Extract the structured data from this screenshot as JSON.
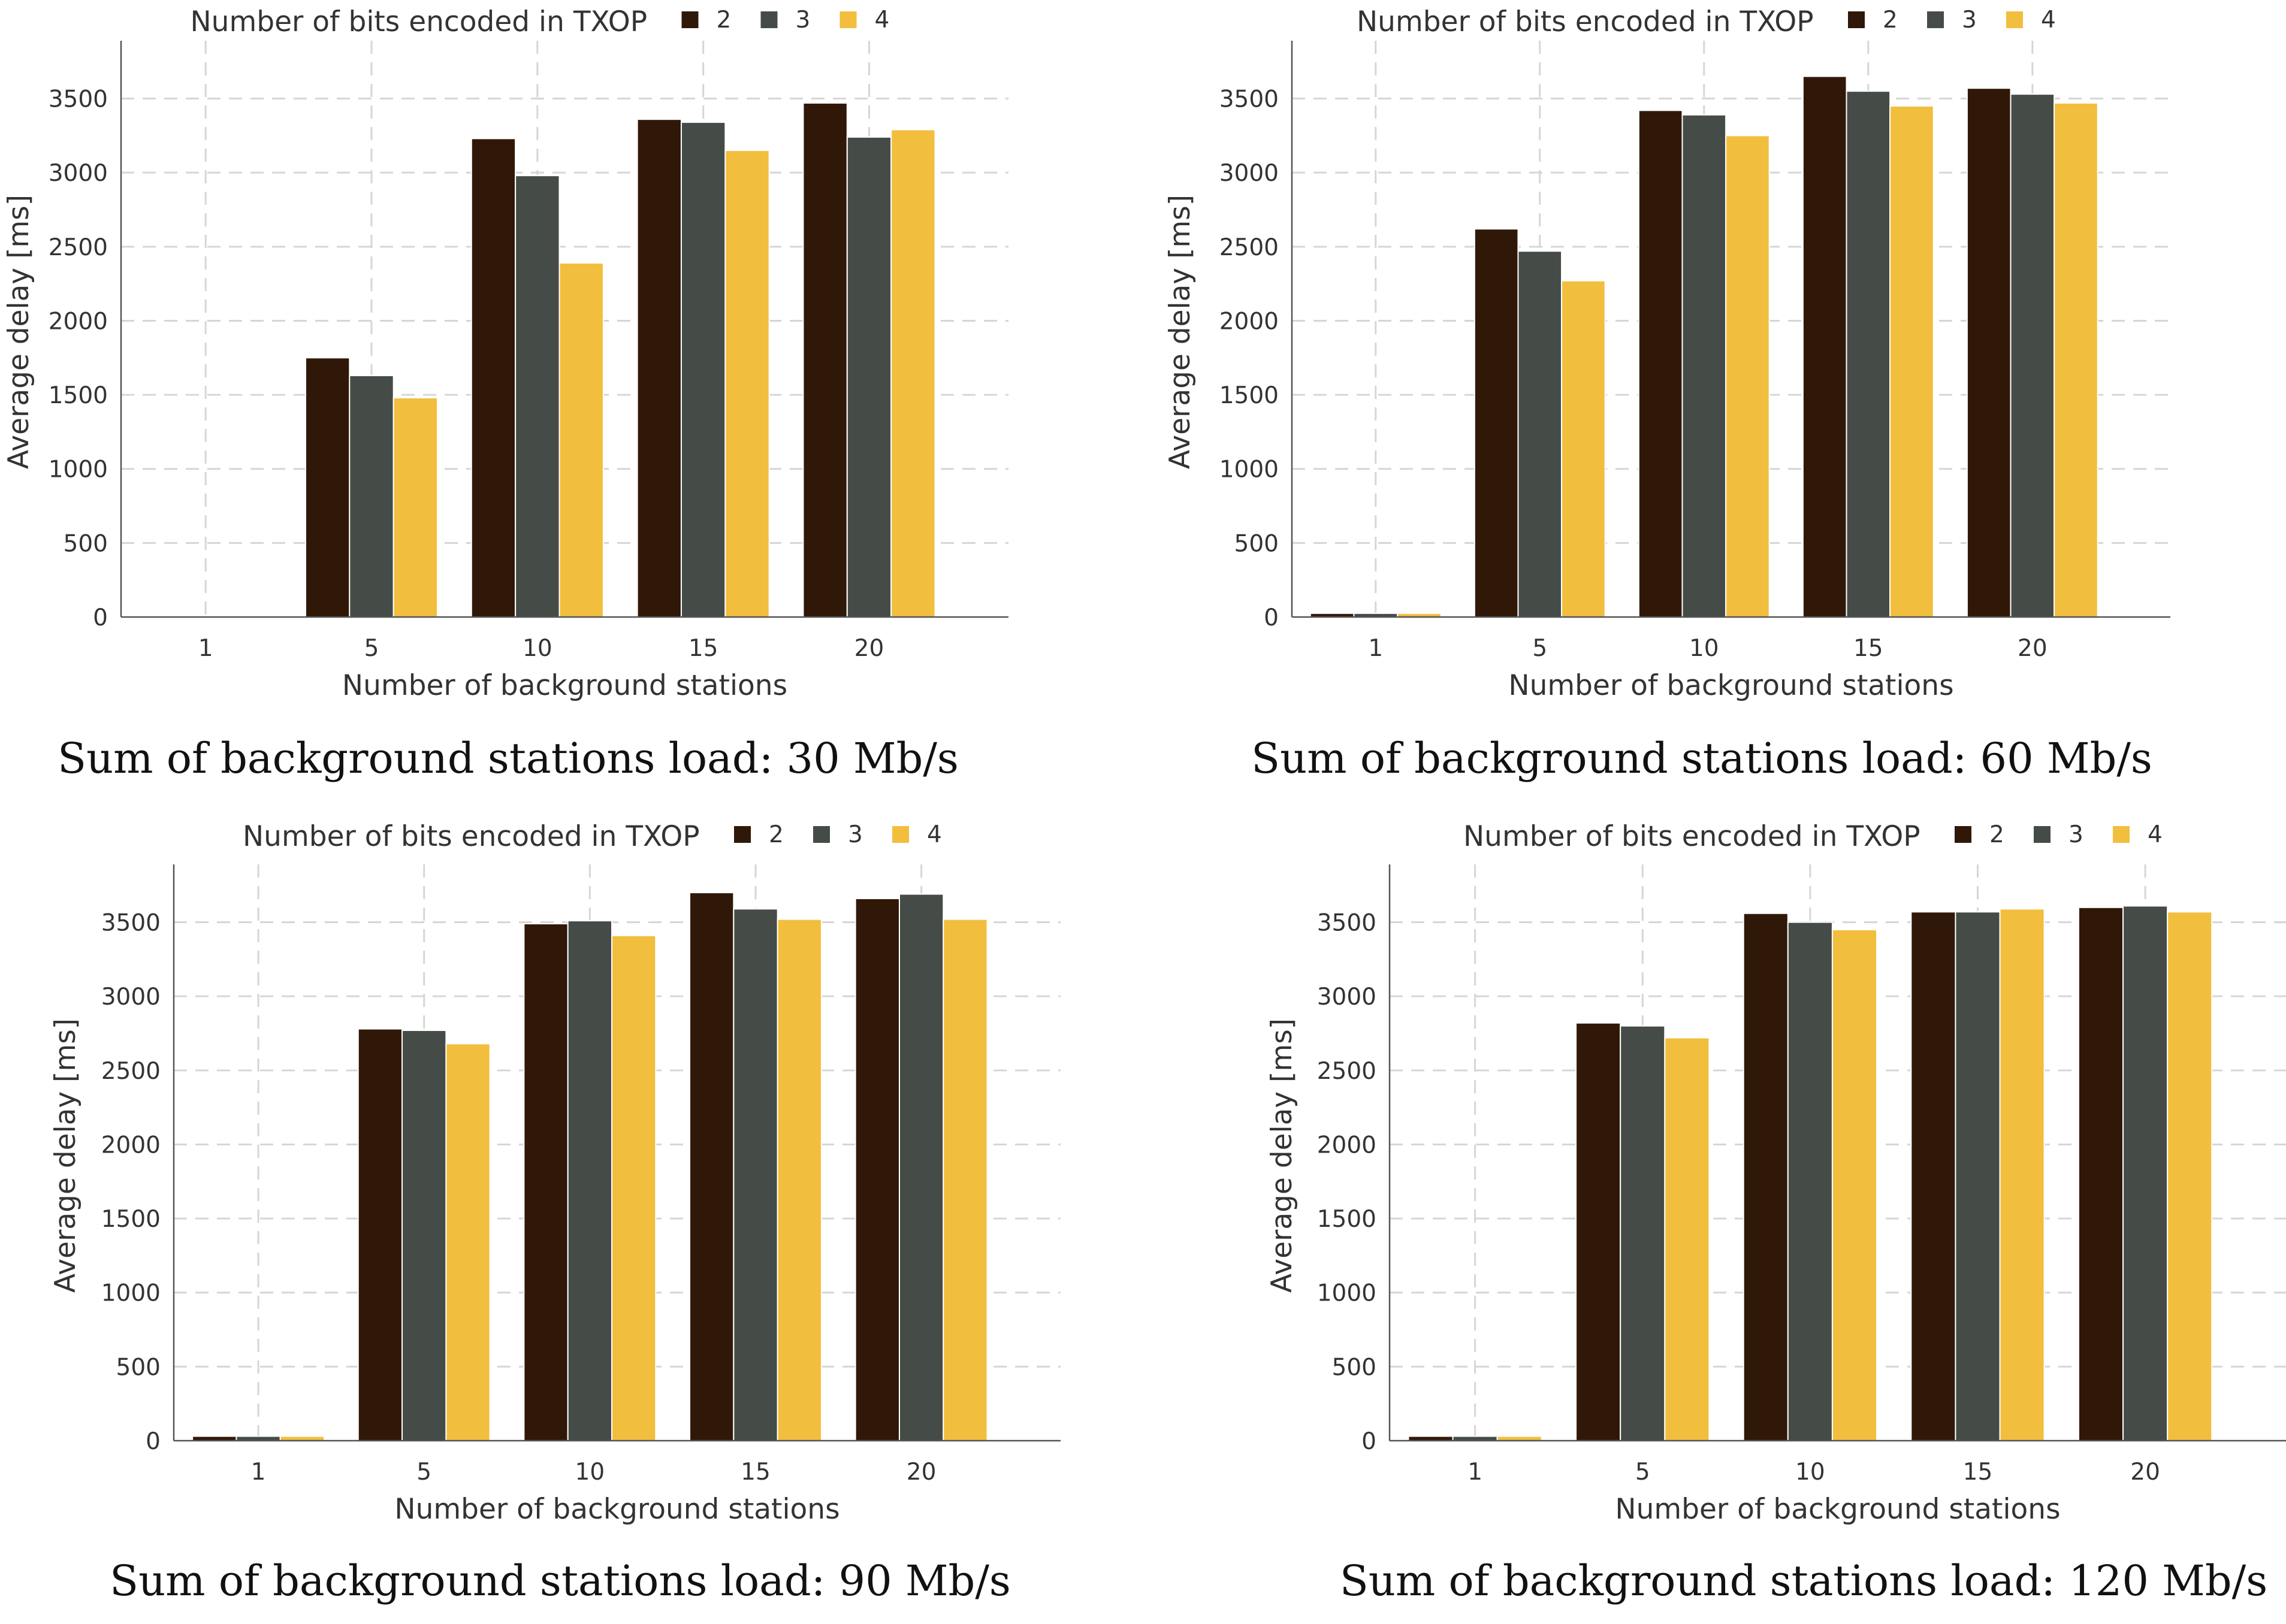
{
  "chart_data": [
    {
      "type": "bar",
      "caption": "Sum of background stations load: 30 Mb/s",
      "xlabel": "Number of background stations",
      "ylabel": "Average delay [ms]",
      "legend_title": "Number of bits encoded in TXOP",
      "legend_position": "top",
      "categories": [
        "1",
        "5",
        "10",
        "15",
        "20"
      ],
      "ylim": [
        0,
        3850
      ],
      "yticks": [
        0,
        500,
        1000,
        1500,
        2000,
        2500,
        3000,
        3500
      ],
      "grid": true,
      "series": [
        {
          "name": "2",
          "color": "#301808",
          "values": [
            5,
            1750,
            3230,
            3360,
            3470
          ]
        },
        {
          "name": "3",
          "color": "#454b46",
          "values": [
            5,
            1630,
            2980,
            3340,
            3240
          ]
        },
        {
          "name": "4",
          "color": "#f2be3e",
          "values": [
            5,
            1480,
            2390,
            3150,
            3290
          ]
        }
      ]
    },
    {
      "type": "bar",
      "caption": "Sum of background stations load: 60 Mb/s",
      "xlabel": "Number of background stations",
      "ylabel": "Average delay [ms]",
      "legend_title": "Number of bits encoded in TXOP",
      "legend_position": "top",
      "categories": [
        "1",
        "5",
        "10",
        "15",
        "20"
      ],
      "ylim": [
        0,
        3850
      ],
      "yticks": [
        0,
        500,
        1000,
        1500,
        2000,
        2500,
        3000,
        3500
      ],
      "grid": true,
      "series": [
        {
          "name": "2",
          "color": "#301808",
          "values": [
            25,
            2620,
            3420,
            3650,
            3570
          ]
        },
        {
          "name": "3",
          "color": "#454b46",
          "values": [
            25,
            2470,
            3390,
            3550,
            3530
          ]
        },
        {
          "name": "4",
          "color": "#f2be3e",
          "values": [
            25,
            2270,
            3250,
            3450,
            3470
          ]
        }
      ]
    },
    {
      "type": "bar",
      "caption": "Sum of background stations load: 90 Mb/s",
      "xlabel": "Number of background stations",
      "ylabel": "Average delay [ms]",
      "legend_title": "Number of bits encoded in TXOP",
      "legend_position": "top",
      "categories": [
        "1",
        "5",
        "10",
        "15",
        "20"
      ],
      "ylim": [
        0,
        3850
      ],
      "yticks": [
        0,
        500,
        1000,
        1500,
        2000,
        2500,
        3000,
        3500
      ],
      "grid": true,
      "series": [
        {
          "name": "2",
          "color": "#301808",
          "values": [
            30,
            2780,
            3490,
            3700,
            3660
          ]
        },
        {
          "name": "3",
          "color": "#454b46",
          "values": [
            30,
            2770,
            3510,
            3590,
            3690
          ]
        },
        {
          "name": "4",
          "color": "#f2be3e",
          "values": [
            30,
            2680,
            3410,
            3520,
            3520
          ]
        }
      ]
    },
    {
      "type": "bar",
      "caption": "Sum of background stations load: 120 Mb/s",
      "xlabel": "Number of background stations",
      "ylabel": "Average delay [ms]",
      "legend_title": "Number of bits encoded in TXOP",
      "legend_position": "top",
      "categories": [
        "1",
        "5",
        "10",
        "15",
        "20"
      ],
      "ylim": [
        0,
        3850
      ],
      "yticks": [
        0,
        500,
        1000,
        1500,
        2000,
        2500,
        3000,
        3500
      ],
      "grid": true,
      "series": [
        {
          "name": "2",
          "color": "#301808",
          "values": [
            30,
            2820,
            3560,
            3570,
            3600
          ]
        },
        {
          "name": "3",
          "color": "#454b46",
          "values": [
            30,
            2800,
            3500,
            3570,
            3610
          ]
        },
        {
          "name": "4",
          "color": "#f2be3e",
          "values": [
            30,
            2720,
            3450,
            3590,
            3570
          ]
        }
      ]
    }
  ]
}
